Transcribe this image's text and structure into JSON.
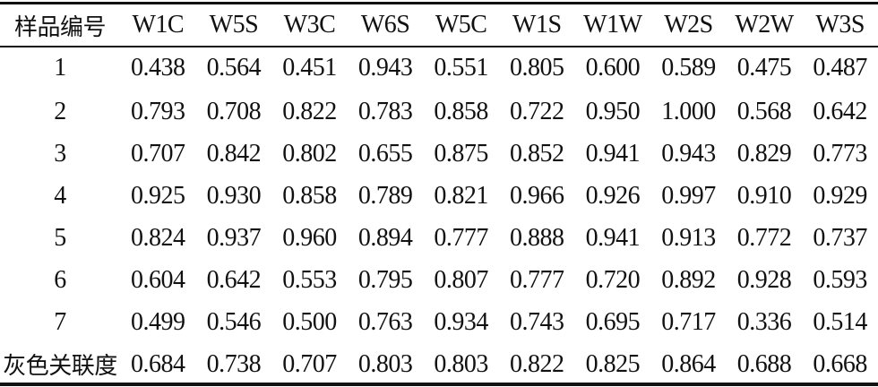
{
  "table": {
    "headers": [
      "样品编号",
      "W1C",
      "W5S",
      "W3C",
      "W6S",
      "W5C",
      "W1S",
      "W1W",
      "W2S",
      "W2W",
      "W3S"
    ],
    "rows": [
      [
        "1",
        "0.438",
        "0.564",
        "0.451",
        "0.943",
        "0.551",
        "0.805",
        "0.600",
        "0.589",
        "0.475",
        "0.487"
      ],
      [
        "2",
        "0.793",
        "0.708",
        "0.822",
        "0.783",
        "0.858",
        "0.722",
        "0.950",
        "1.000",
        "0.568",
        "0.642"
      ],
      [
        "3",
        "0.707",
        "0.842",
        "0.802",
        "0.655",
        "0.875",
        "0.852",
        "0.941",
        "0.943",
        "0.829",
        "0.773"
      ],
      [
        "4",
        "0.925",
        "0.930",
        "0.858",
        "0.789",
        "0.821",
        "0.966",
        "0.926",
        "0.997",
        "0.910",
        "0.929"
      ],
      [
        "5",
        "0.824",
        "0.937",
        "0.960",
        "0.894",
        "0.777",
        "0.888",
        "0.941",
        "0.913",
        "0.772",
        "0.737"
      ],
      [
        "6",
        "0.604",
        "0.642",
        "0.553",
        "0.795",
        "0.807",
        "0.777",
        "0.720",
        "0.892",
        "0.928",
        "0.593"
      ],
      [
        "7",
        "0.499",
        "0.546",
        "0.500",
        "0.763",
        "0.934",
        "0.743",
        "0.695",
        "0.717",
        "0.336",
        "0.514"
      ],
      [
        "灰色关联度",
        "0.684",
        "0.738",
        "0.707",
        "0.803",
        "0.803",
        "0.822",
        "0.825",
        "0.864",
        "0.688",
        "0.668"
      ]
    ]
  }
}
